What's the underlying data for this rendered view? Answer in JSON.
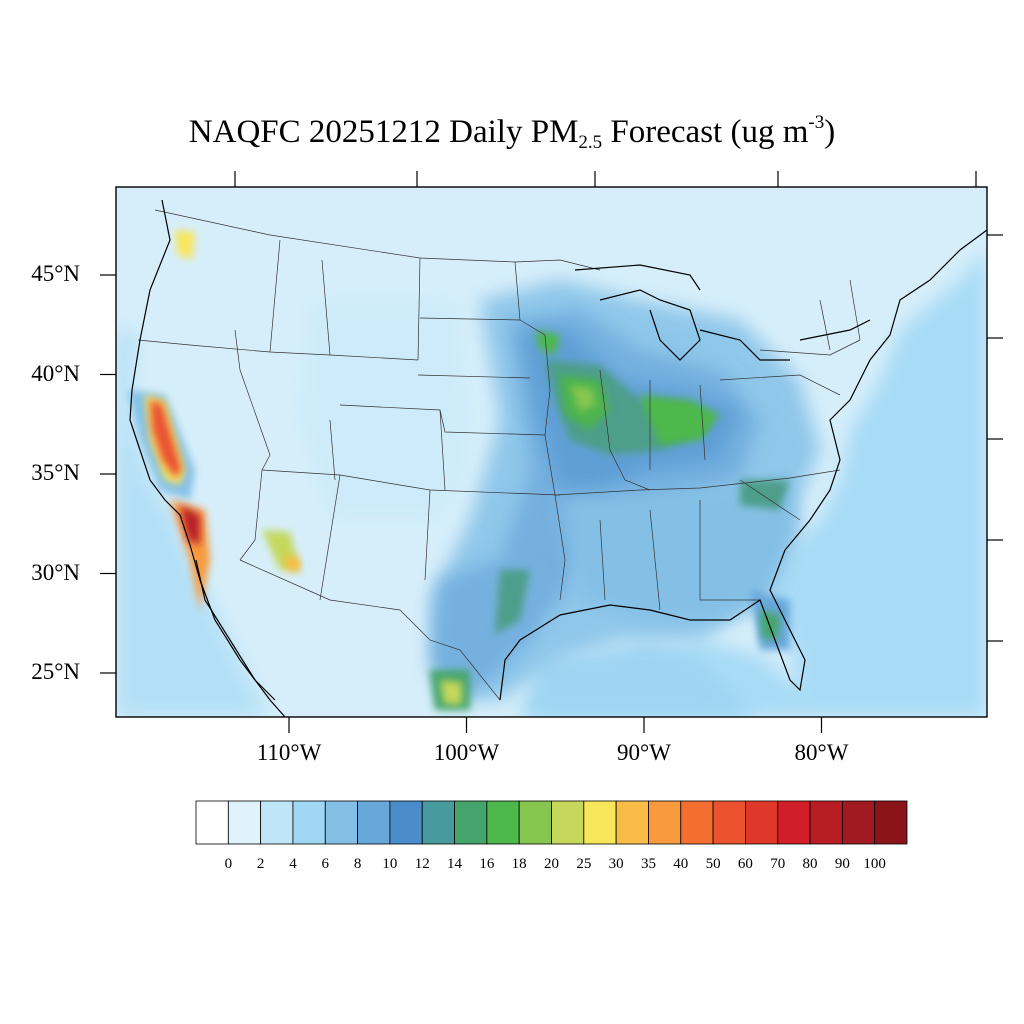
{
  "title": {
    "prefix": "NAQFC 20251212 Daily PM",
    "subscript": "2.5",
    "middle": " Forecast (ug m",
    "superscript": "-3",
    "suffix": ")"
  },
  "map": {
    "lat_labels": [
      {
        "text": "45°N",
        "lat": 45
      },
      {
        "text": "40°N",
        "lat": 40
      },
      {
        "text": "35°N",
        "lat": 35
      },
      {
        "text": "30°N",
        "lat": 30
      },
      {
        "text": "25°N",
        "lat": 25
      }
    ],
    "lon_labels": [
      {
        "text": "110°W",
        "lon": -110
      },
      {
        "text": "100°W",
        "lon": -100
      },
      {
        "text": "90°W",
        "lon": -90
      },
      {
        "text": "80°W",
        "lon": -80
      }
    ],
    "background_color": "#d6eefa",
    "ocean_color": "#a4d8f5",
    "border_color": "#222222"
  },
  "colorbar": {
    "labels": [
      "0",
      "2",
      "4",
      "6",
      "8",
      "10",
      "12",
      "14",
      "16",
      "18",
      "20",
      "25",
      "30",
      "35",
      "40",
      "50",
      "60",
      "70",
      "80",
      "90",
      "100"
    ],
    "colors": [
      "#ffffff",
      "#e0f3fc",
      "#bfe6f8",
      "#9fd7f4",
      "#84c0e6",
      "#67a7da",
      "#4b8dcb",
      "#479b9f",
      "#45a46c",
      "#4db84b",
      "#86c650",
      "#c5d85c",
      "#f8e65a",
      "#f9bd47",
      "#f89a3d",
      "#f26f31",
      "#ea5230",
      "#e0372b",
      "#d11f2a",
      "#b81d25",
      "#a11a22",
      "#8a1519"
    ]
  },
  "hotspots": [
    {
      "name": "central-valley-ca",
      "value": 60
    },
    {
      "name": "southern-ca",
      "value": 80
    },
    {
      "name": "iowa",
      "value": 20
    },
    {
      "name": "minnesota",
      "value": 18
    },
    {
      "name": "indiana",
      "value": 16
    },
    {
      "name": "mexico-northeast",
      "value": 30
    },
    {
      "name": "arizona",
      "value": 25
    },
    {
      "name": "puget-sound",
      "value": 25
    },
    {
      "name": "appalachia",
      "value": 16
    },
    {
      "name": "florida",
      "value": 14
    }
  ]
}
